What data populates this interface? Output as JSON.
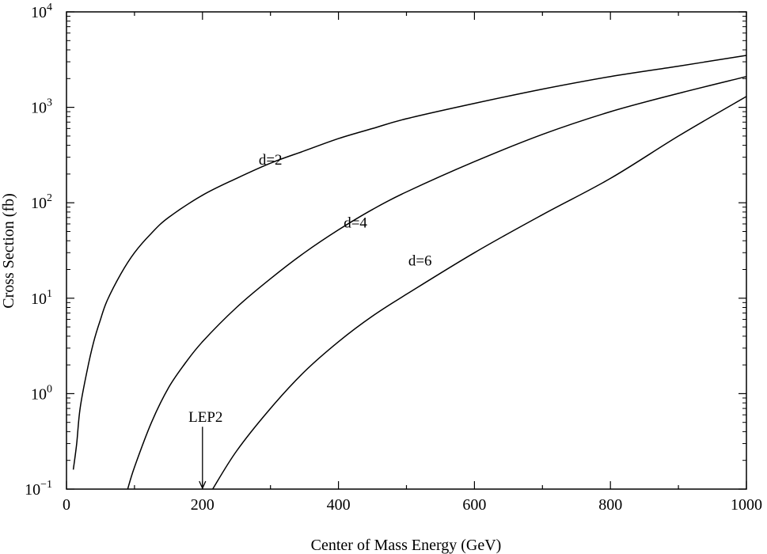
{
  "chart_data": {
    "type": "line",
    "title": "",
    "xlabel": "Center of Mass Energy (GeV)",
    "ylabel": "Cross Section (fb)",
    "xlim": [
      0,
      1000
    ],
    "ylim": [
      0.1,
      10000
    ],
    "yscale": "log",
    "grid": false,
    "x_ticks": [
      {
        "value": 0,
        "label": "0"
      },
      {
        "value": 200,
        "label": "200"
      },
      {
        "value": 400,
        "label": "400"
      },
      {
        "value": 600,
        "label": "600"
      },
      {
        "value": 800,
        "label": "800"
      },
      {
        "value": 1000,
        "label": "1000"
      }
    ],
    "y_ticks": [
      {
        "value": 0.1,
        "base": "10",
        "exp": "−1"
      },
      {
        "value": 1,
        "base": "10",
        "exp": "0"
      },
      {
        "value": 10,
        "base": "10",
        "exp": "1"
      },
      {
        "value": 100,
        "base": "10",
        "exp": "2"
      },
      {
        "value": 1000,
        "base": "10",
        "exp": "3"
      },
      {
        "value": 10000,
        "base": "10",
        "exp": "4"
      }
    ],
    "series": [
      {
        "name": "d=2",
        "label_at": {
          "x": 300,
          "y": 250
        },
        "points": [
          [
            10,
            0.16
          ],
          [
            15,
            0.3
          ],
          [
            20,
            0.7
          ],
          [
            30,
            1.7
          ],
          [
            40,
            3.5
          ],
          [
            50,
            6
          ],
          [
            60,
            9.5
          ],
          [
            80,
            18
          ],
          [
            100,
            30
          ],
          [
            125,
            48
          ],
          [
            150,
            70
          ],
          [
            200,
            120
          ],
          [
            250,
            180
          ],
          [
            300,
            260
          ],
          [
            350,
            350
          ],
          [
            400,
            470
          ],
          [
            450,
            600
          ],
          [
            500,
            760
          ],
          [
            600,
            1100
          ],
          [
            700,
            1550
          ],
          [
            800,
            2100
          ],
          [
            900,
            2700
          ],
          [
            1000,
            3500
          ]
        ]
      },
      {
        "name": "d=4",
        "label_at": {
          "x": 425,
          "y": 55
        },
        "points": [
          [
            90,
            0.1
          ],
          [
            100,
            0.17
          ],
          [
            125,
            0.5
          ],
          [
            150,
            1.15
          ],
          [
            175,
            2.1
          ],
          [
            200,
            3.5
          ],
          [
            250,
            8
          ],
          [
            300,
            16
          ],
          [
            350,
            30
          ],
          [
            400,
            52
          ],
          [
            450,
            85
          ],
          [
            500,
            130
          ],
          [
            600,
            270
          ],
          [
            700,
            520
          ],
          [
            800,
            900
          ],
          [
            900,
            1400
          ],
          [
            1000,
            2100
          ]
        ]
      },
      {
        "name": "d=6",
        "label_at": {
          "x": 520,
          "y": 22
        },
        "points": [
          [
            215,
            0.1
          ],
          [
            250,
            0.25
          ],
          [
            300,
            0.7
          ],
          [
            350,
            1.7
          ],
          [
            400,
            3.5
          ],
          [
            450,
            6.5
          ],
          [
            500,
            11
          ],
          [
            600,
            30
          ],
          [
            700,
            75
          ],
          [
            800,
            180
          ],
          [
            900,
            500
          ],
          [
            1000,
            1300
          ]
        ]
      }
    ],
    "annotations": [
      {
        "text": "LEP2",
        "arrow_x": 200,
        "arrow_y_top": 0.45,
        "arrow_y_bottom": 0.1
      }
    ]
  }
}
